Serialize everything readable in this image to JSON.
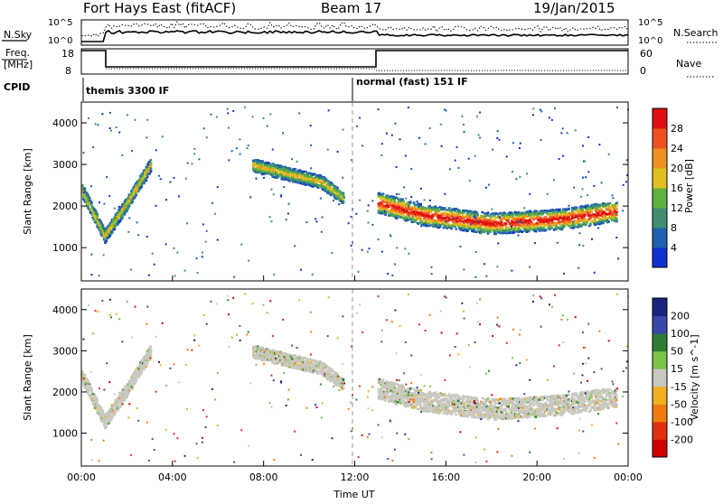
{
  "header": {
    "station": "Fort Hays East (fitACF)",
    "beam": "Beam 17",
    "date": "19/Jan/2015"
  },
  "nsky_panel": {
    "left_label": "N.Sky",
    "right_label": "N.Search",
    "left_ticks": [
      "10^5",
      "10^0"
    ],
    "right_ticks": [
      "10^5",
      "10^0"
    ]
  },
  "freq_panel": {
    "left_label_1": "Freq.",
    "left_label_2": "[MHz]",
    "right_label": "Nave",
    "left_ticks": [
      "18",
      "8"
    ],
    "right_ticks": [
      "60",
      "0"
    ]
  },
  "cpid": {
    "label": "CPID",
    "modes": [
      {
        "name": "themis 3300 IF",
        "start_hour": 0.0
      },
      {
        "name": "normal (fast) 151 IF",
        "start_hour": 12.0
      }
    ]
  },
  "colors": {
    "power_scale": [
      "#1030d0",
      "#2060b0",
      "#3f8f70",
      "#60b040",
      "#e0c020",
      "#f09020",
      "#f05020",
      "#e01010"
    ],
    "velocity_scale": [
      "#1a237e",
      "#3949ab",
      "#2e7d32",
      "#7cc34a",
      "#c8c8c0",
      "#f0b020",
      "#f07c10",
      "#e03010",
      "#d00000"
    ]
  },
  "chart_data": [
    {
      "type": "heatmap",
      "name": "power",
      "ylabel": "Slant Range [km]",
      "y_ticks": [
        1000,
        2000,
        3000,
        4000
      ],
      "ylim": [
        200,
        4500
      ],
      "colorbar": {
        "label": "Power [dB]",
        "ticks": [
          "4",
          "8",
          "12",
          "16",
          "20",
          "24",
          "28"
        ],
        "range": [
          0,
          30
        ]
      },
      "features": [
        {
          "feature": "early echo band",
          "x_hours": [
            0.0,
            1.0,
            2.0,
            3.0
          ],
          "range_km": [
            2400,
            1300,
            2100,
            3000
          ],
          "power_db": 14
        },
        {
          "feature": "afternoon echo band",
          "x_hours": [
            7.5,
            9.0,
            10.5,
            11.5
          ],
          "range_km": [
            3000,
            2800,
            2600,
            2200
          ],
          "power_db": 12
        },
        {
          "feature": "main echo band",
          "x_hours": [
            13.0,
            15.0,
            18.0,
            21.0,
            23.5
          ],
          "range_km": [
            2100,
            1800,
            1600,
            1700,
            1900
          ],
          "power_db": 24
        }
      ]
    },
    {
      "type": "heatmap",
      "name": "velocity",
      "ylabel": "Slant Range [km]",
      "y_ticks": [
        1000,
        2000,
        3000,
        4000
      ],
      "ylim": [
        200,
        4500
      ],
      "xlabel": "Time UT",
      "x_ticks": [
        "00:00",
        "04:00",
        "08:00",
        "12:00",
        "16:00",
        "20:00",
        "00:00"
      ],
      "xlim": [
        0,
        24
      ],
      "colorbar": {
        "label": "Velocity [m s^-1]",
        "ticks": [
          "200",
          "100",
          "50",
          "15",
          "-15",
          "-50",
          "-100",
          "-200"
        ],
        "range": [
          -250,
          250
        ]
      },
      "features": [
        {
          "feature": "ground scatter band",
          "x_hours": [
            0.0,
            1.0,
            2.0,
            3.0
          ],
          "range_km": [
            2400,
            1300,
            2100,
            3000
          ],
          "velocity_ms": 0
        },
        {
          "feature": "ground scatter band",
          "x_hours": [
            7.5,
            9.0,
            10.5,
            11.5
          ],
          "range_km": [
            3000,
            2800,
            2600,
            2200
          ],
          "velocity_ms": 0
        },
        {
          "feature": "ground scatter band",
          "x_hours": [
            13.0,
            15.0,
            18.0,
            21.0,
            23.5
          ],
          "range_km": [
            2100,
            1800,
            1600,
            1700,
            1900
          ],
          "velocity_ms": 0
        }
      ]
    }
  ]
}
